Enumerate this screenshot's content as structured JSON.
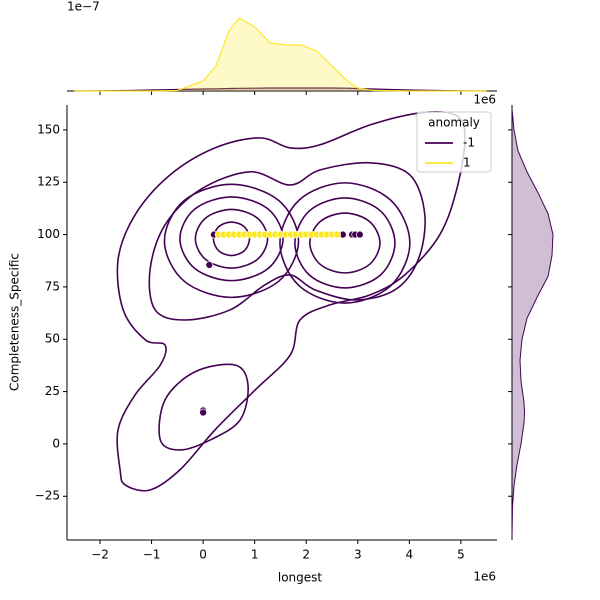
{
  "chart_data": {
    "type": "joint_kde",
    "xlabel": "longest",
    "ylabel": "Completeness_Specific",
    "x_offset_label": "1e6",
    "y_offset_label": "1e6",
    "xlim": [
      -2.64,
      5.7
    ],
    "ylim": [
      -45.9,
      161.9
    ],
    "xticks": [
      {
        "value": -2,
        "label": "−2"
      },
      {
        "value": -1,
        "label": "−1"
      },
      0,
      1,
      2,
      3,
      4,
      5
    ],
    "yticks": [
      {
        "value": -25,
        "label": "−25"
      },
      0,
      25,
      50,
      75,
      100,
      125,
      150
    ],
    "legend": {
      "title": "anomaly",
      "loc": "upper right"
    },
    "series": [
      {
        "name": "-1",
        "color": "#440154",
        "scatter": {
          "x": [
            0,
            0,
            0.12,
            0.21,
            0.52,
            2.71,
            2.89,
            2.95,
            3.04
          ],
          "y": [
            16,
            15,
            85.5,
            100,
            100,
            100,
            100,
            100,
            100
          ]
        },
        "contours": [
          {
            "x": [
              -1.61,
              -1.65,
              -1.32,
              -0.83,
              -0.74,
              -1.12,
              -1.55,
              -1.65,
              -1.32,
              -0.64,
              0.23,
              1.1,
              1.69,
              2.27,
              3.24,
              4.21,
              4.88,
              5.08,
              4.94,
              4.59,
              3.91,
              3.24,
              2.46,
              1.88,
              1.69,
              1.01,
              0.23,
              -0.45,
              -1.03,
              -1.51
            ],
            "y": [
              -12.4,
              6.7,
              23.4,
              37.7,
              47.3,
              49.7,
              64.0,
              87.9,
              109.4,
              128.5,
              141.4,
              146.2,
              141.4,
              142.9,
              152.4,
              158.1,
              157.2,
              147.6,
              123.7,
              99.9,
              80.7,
              71.2,
              66.4,
              59.2,
              42.5,
              25.8,
              6.7,
              -12.4,
              -22.0,
              -19.6
            ]
          },
          {
            "x": [
              -0.93,
              -1.03,
              -0.74,
              -0.06,
              0.91,
              1.69,
              2.27,
              3.24,
              4.01,
              4.3,
              4.17,
              3.72,
              2.95,
              2.17,
              1.69,
              1.2,
              0.52,
              -0.35
            ],
            "y": [
              64.0,
              83.1,
              104.6,
              121.4,
              130.0,
              123.7,
              130.9,
              134.3,
              128.5,
              109.4,
              87.9,
              73.6,
              68.8,
              73.6,
              80.7,
              76.0,
              64.0,
              59.2
            ]
          },
          {
            "x": [
              1.85,
              1.47,
              0.55,
              -0.37,
              -0.75,
              -0.37,
              0.55,
              1.47
            ],
            "y": [
              97,
              116.2,
              124,
              116.2,
              97,
              77.8,
              70,
              77.8
            ]
          },
          {
            "x": [
              1.55,
              1.26,
              0.55,
              -0.16,
              -0.45,
              -0.16,
              0.55,
              1.26
            ],
            "y": [
              98,
              112.2,
              118,
              112.2,
              98,
              83.8,
              78,
              83.8
            ]
          },
          {
            "x": [
              1.25,
              1.05,
              0.55,
              0.05,
              -0.15,
              0.05,
              0.55,
              1.05
            ],
            "y": [
              98,
              107.9,
              112,
              107.9,
              98,
              88.1,
              84,
              88.1
            ]
          },
          {
            "x": [
              0.9,
              0.8,
              0.55,
              0.3,
              0.2,
              0.3,
              0.55,
              0.8
            ],
            "y": [
              98,
              103.7,
              106,
              103.7,
              98,
              92.3,
              90,
              92.3
            ]
          },
          {
            "x": [
              4.01,
              3.64,
              2.75,
              1.86,
              1.49,
              1.86,
              2.75,
              3.64
            ],
            "y": [
              96,
              116.4,
              124.7,
              116.4,
              96,
              75.6,
              67.3,
              75.6
            ]
          },
          {
            "x": [
              3.72,
              3.44,
              2.75,
              2.06,
              1.78,
              2.06,
              2.75,
              3.44
            ],
            "y": [
              96,
              111.3,
              117.5,
              111.3,
              96,
              80.7,
              74.5,
              80.7
            ]
          },
          {
            "x": [
              3.43,
              3.23,
              2.75,
              2.27,
              2.07,
              2.27,
              2.75,
              3.23
            ],
            "y": [
              96,
              106.2,
              110.3,
              106.2,
              96,
              85.8,
              81.7,
              85.8
            ]
          },
          {
            "x": [
              -0.83,
              -0.74,
              -0.16,
              0.62,
              0.87,
              0.72,
              0.14,
              -0.45
            ],
            "y": [
              1.9,
              21,
              34.4,
              37.7,
              28.2,
              11.5,
              1.9,
              -2.9
            ]
          }
        ]
      },
      {
        "name": "1",
        "color": "#fde725",
        "scatter": {
          "x": [
            0.3,
            0.4,
            0.5,
            0.6,
            0.7,
            0.8,
            0.9,
            1.0,
            1.1,
            1.2,
            1.3,
            1.4,
            1.5,
            1.6,
            1.7,
            1.8,
            1.9,
            2.0,
            2.1,
            2.2,
            2.3,
            2.4,
            2.5,
            2.6
          ],
          "y": [
            100,
            100,
            100,
            100,
            100,
            100,
            100,
            100,
            100,
            100,
            100,
            100,
            100,
            100,
            100,
            100,
            100,
            100,
            100,
            100,
            100,
            100,
            100,
            100
          ]
        }
      }
    ],
    "top_marginal": {
      "offset_label": "1e−7",
      "ylim": [
        0,
        8.6
      ],
      "x": [
        -2.5,
        -2,
        -1.5,
        -1,
        -0.5,
        0,
        0.25,
        0.5,
        0.7,
        1,
        1.3,
        1.6,
        1.9,
        2.2,
        2.5,
        2.8,
        3,
        3.3,
        4,
        5,
        5.5
      ],
      "series": [
        {
          "color": "#440154",
          "values": [
            0,
            0.02,
            0.05,
            0.1,
            0.15,
            0.2,
            0.22,
            0.25,
            0.27,
            0.28,
            0.3,
            0.3,
            0.3,
            0.3,
            0.3,
            0.28,
            0.25,
            0.2,
            0.1,
            0.02,
            0
          ]
        },
        {
          "color": "#fde725",
          "values": [
            0,
            0,
            0,
            0,
            0.05,
            1,
            2.5,
            6,
            7.3,
            6.4,
            4.8,
            4.6,
            4.6,
            4,
            2.5,
            1,
            0.3,
            0.05,
            0,
            0,
            0
          ]
        }
      ]
    },
    "right_marginal": {
      "xlim": [
        0,
        8
      ],
      "y": [
        -45,
        -30,
        -20,
        -10,
        0,
        10,
        15,
        20,
        30,
        40,
        50,
        60,
        70,
        80,
        90,
        100,
        110,
        120,
        130,
        140,
        150,
        160
      ],
      "color": "#440154",
      "values": [
        0,
        0.05,
        0.2,
        0.5,
        0.9,
        1.2,
        1.25,
        1.2,
        0.9,
        0.8,
        1.0,
        1.5,
        2.5,
        3.6,
        4.0,
        4.1,
        3.6,
        2.6,
        1.5,
        0.6,
        0.2,
        0
      ]
    }
  }
}
